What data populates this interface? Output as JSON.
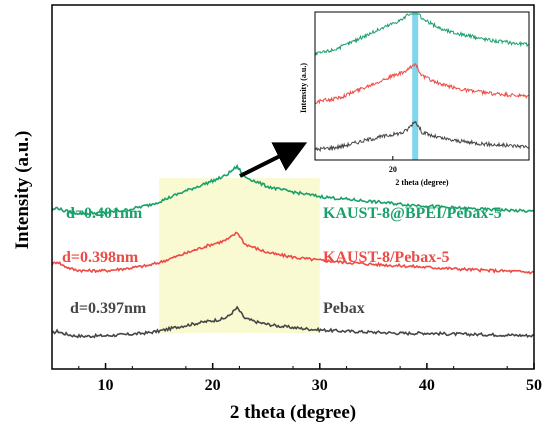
{
  "chart_data": {
    "type": "line",
    "xlabel": "2 theta (degree)",
    "ylabel": "Intensity (a.u.)",
    "xlim": [
      5,
      50
    ],
    "xticks": [
      10,
      20,
      30,
      40,
      50
    ],
    "y_ticks_shown": false,
    "highlight_region": {
      "x": [
        15,
        30
      ],
      "color": "#fafad2"
    },
    "series": [
      {
        "name": "Pebax",
        "color": "#464646",
        "d_label": "d=0.397nm",
        "label": "Pebax",
        "x": [
          5,
          5.5,
          6,
          7,
          8,
          10,
          12,
          14,
          15,
          17,
          19,
          20,
          21,
          21.5,
          22,
          22.3,
          22.6,
          23,
          24,
          25,
          26,
          28,
          30,
          32,
          35,
          38,
          40,
          42,
          45,
          48,
          50
        ],
        "y": [
          0.08,
          0.12,
          0.08,
          0.04,
          0.03,
          0.04,
          0.06,
          0.09,
          0.12,
          0.2,
          0.27,
          0.3,
          0.33,
          0.38,
          0.47,
          0.52,
          0.44,
          0.34,
          0.28,
          0.24,
          0.21,
          0.17,
          0.14,
          0.12,
          0.1,
          0.08,
          0.085,
          0.07,
          0.06,
          0.05,
          0.04
        ]
      },
      {
        "name": "KAUST-8/Pebax-5",
        "color": "#ee4b45",
        "d_label": "d=0.398nm",
        "label": "KAUST-8/Pebax-5",
        "x": [
          5,
          5.5,
          6,
          7,
          8,
          10,
          12,
          14,
          15,
          17,
          19,
          20,
          21,
          21.5,
          22,
          22.3,
          22.6,
          23,
          24,
          25,
          26,
          28,
          30,
          32,
          35,
          38,
          40,
          42,
          45,
          48,
          50
        ],
        "y": [
          1.27,
          1.32,
          1.25,
          1.18,
          1.16,
          1.16,
          1.2,
          1.25,
          1.3,
          1.43,
          1.56,
          1.62,
          1.67,
          1.71,
          1.78,
          1.82,
          1.74,
          1.62,
          1.55,
          1.48,
          1.44,
          1.38,
          1.34,
          1.31,
          1.27,
          1.24,
          1.22,
          1.2,
          1.17,
          1.15,
          1.13
        ]
      },
      {
        "name": "KAUST-8@BPEI/Pebax-5",
        "color": "#18a16a",
        "d_label": "d=0.401nm",
        "label": "KAUST-8@BPEI/Pebax-5",
        "x": [
          5,
          5.5,
          6,
          7,
          8,
          10,
          12,
          14,
          15,
          17,
          19,
          20,
          21,
          21.5,
          22,
          22.3,
          22.6,
          23,
          24,
          25,
          26,
          28,
          30,
          32,
          35,
          38,
          40,
          42,
          45,
          48,
          50
        ],
        "y": [
          2.2,
          2.25,
          2.2,
          2.16,
          2.15,
          2.16,
          2.21,
          2.29,
          2.35,
          2.5,
          2.64,
          2.71,
          2.78,
          2.84,
          2.92,
          2.95,
          2.88,
          2.78,
          2.7,
          2.62,
          2.57,
          2.5,
          2.44,
          2.4,
          2.35,
          2.3,
          2.28,
          2.25,
          2.22,
          2.2,
          2.18
        ]
      }
    ],
    "inset": {
      "xlabel": "2 theta (degree)",
      "ylabel": "Intensity (a.u.)",
      "xlim": [
        12,
        34
      ],
      "xticks": [
        20
      ],
      "highlight_x": 22.3,
      "highlight_color": "#7fd6ee"
    }
  }
}
